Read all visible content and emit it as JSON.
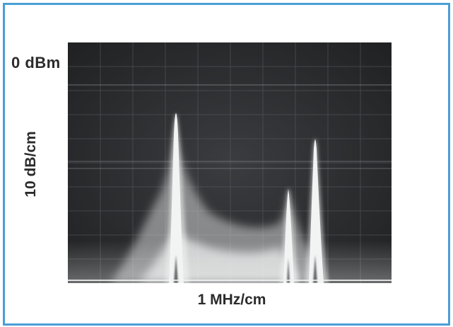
{
  "figure": {
    "reference_level_label": "0 dBm",
    "vertical_scale_label": "10 dB/cm",
    "horizontal_scale_label": "1 MHz/cm"
  },
  "display": {
    "description_kind": "spectrum analyzer CRT photograph",
    "background_color": "#2a2c2e",
    "trace_color": "#f2f4f4",
    "frame_color": "#4a9fd6"
  }
}
